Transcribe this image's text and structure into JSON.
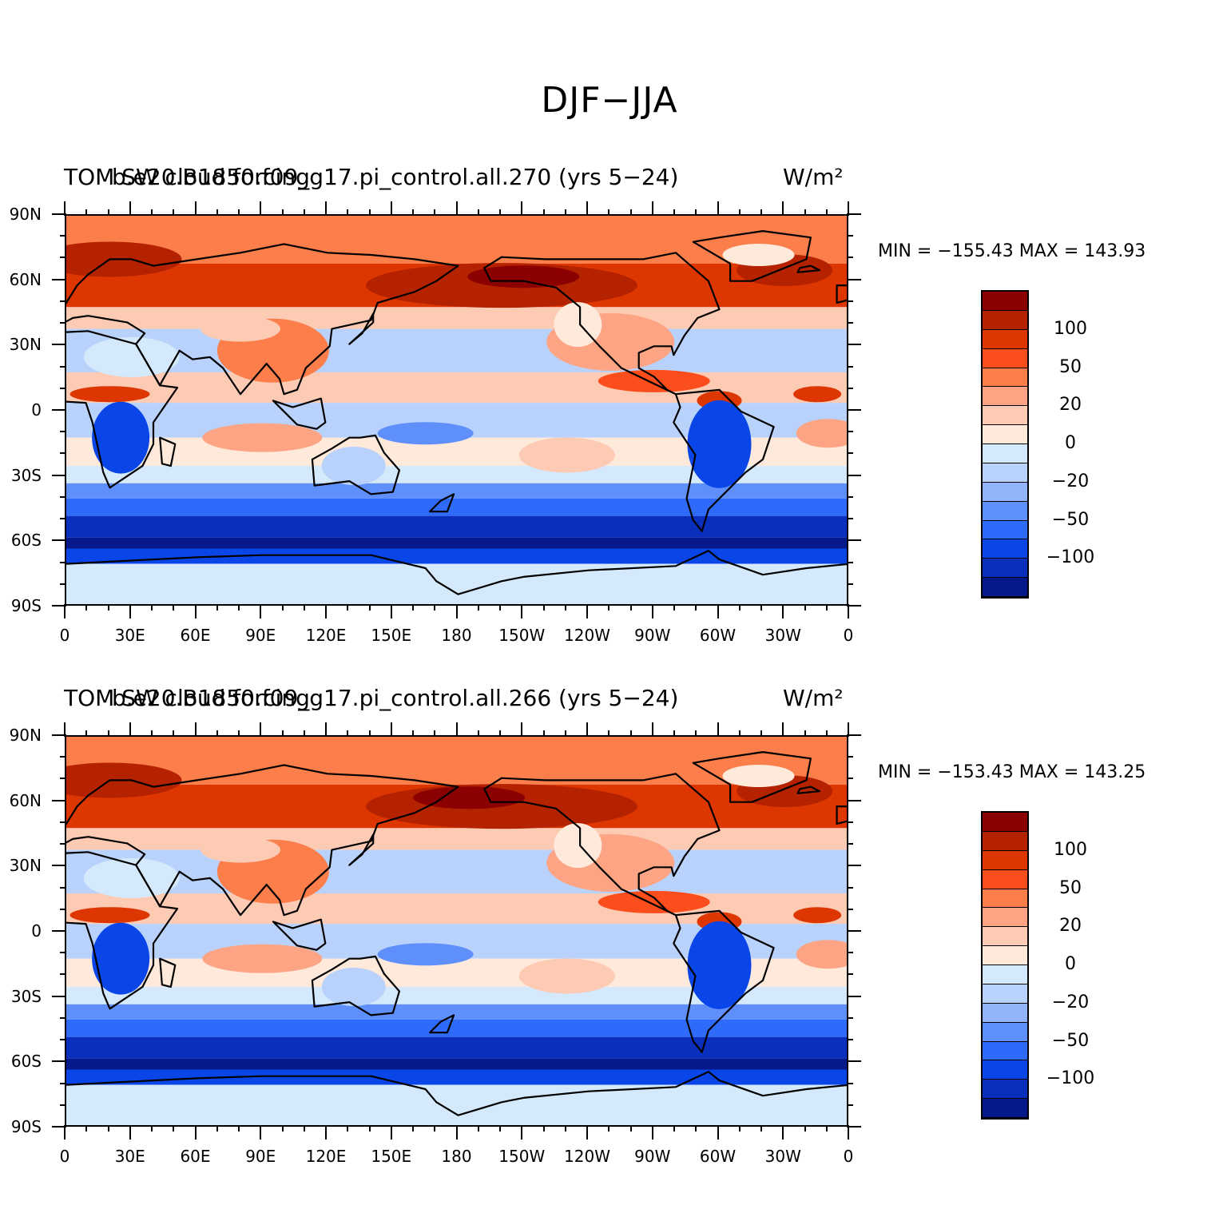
{
  "title": "DJF−JJA",
  "colorbar": {
    "colors": [
      "#8b0000",
      "#b52200",
      "#dd3600",
      "#fb4e1c",
      "#fc7e4a",
      "#fca484",
      "#fdcab4",
      "#fee9db",
      "#d5e9fd",
      "#b8d2fc",
      "#91b4fb",
      "#5e8ffb",
      "#2f6bfa",
      "#0a45e8",
      "#0a2fbd",
      "#06198a"
    ],
    "labels": [
      "100",
      "50",
      "20",
      "0",
      "−20",
      "−50",
      "−100"
    ]
  },
  "axes": {
    "y_ticks": [
      "90N",
      "60N",
      "30N",
      "0",
      "30S",
      "60S",
      "90S"
    ],
    "x_ticks": [
      "0",
      "30E",
      "60E",
      "90E",
      "120E",
      "150E",
      "180",
      "150W",
      "120W",
      "90W",
      "60W",
      "30W",
      "0"
    ]
  },
  "panels": [
    {
      "variable": "TOM SW cloud forcing",
      "case": "b.e20.B1850.f09_g17.pi_control.all.270 (yrs 5−24)",
      "units": "W/m²",
      "min_max": "MIN = −155.43 MAX = 143.93",
      "shading": {
        "dark_red_center_lon": 210,
        "dark_red_center_lat": 62
      }
    },
    {
      "variable": "TOM SW cloud forcing",
      "case": "b.e20.B1850.f09_g17.pi_control.all.266 (yrs 5−24)",
      "units": "W/m²",
      "min_max": "MIN = −153.43 MAX = 143.25",
      "shading": {
        "dark_red_center_lon": 185,
        "dark_red_center_lat": 62
      }
    }
  ]
}
